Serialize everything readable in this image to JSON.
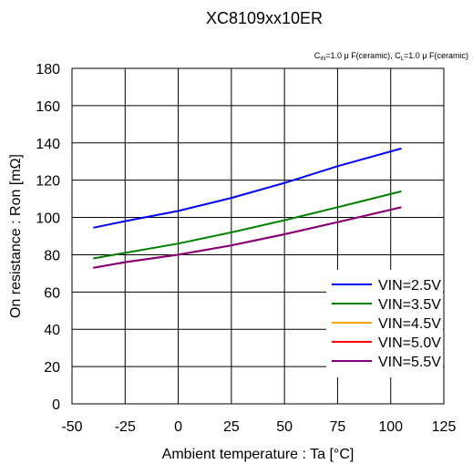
{
  "chart_data": {
    "type": "line",
    "title": "XC8109xx10ER",
    "subtitle": "CIN=1.0μF(ceramic), CL=1.0μF(ceramic)",
    "subtitle_parts": {
      "cin_symbol": "C",
      "cin_sub": "IN",
      "cin_rest": "=1.0 μ F(ceramic),",
      "cl_symbol": "C",
      "cl_sub": "L",
      "cl_rest": "=1.0 μ F(ceramic)"
    },
    "xlabel": "Ambient temperature : Ta [°C]",
    "ylabel": "On resistance : Ron [mΩ]",
    "xlim": [
      -50,
      125
    ],
    "ylim": [
      0,
      180
    ],
    "x_ticks": [
      -50,
      -25,
      0,
      25,
      50,
      75,
      100,
      125
    ],
    "y_ticks": [
      0,
      20,
      40,
      60,
      80,
      100,
      120,
      140,
      160,
      180
    ],
    "grid": true,
    "legend_position": "bottom-right",
    "series": [
      {
        "name": "VIN=2.5V",
        "color": "#0000ff",
        "x": [
          -40,
          -25,
          0,
          25,
          50,
          75,
          105
        ],
        "y": [
          94.5,
          98,
          103.5,
          110.5,
          118.5,
          127.5,
          137
        ]
      },
      {
        "name": "VIN=3.5V",
        "color": "#008000",
        "x": [
          -40,
          -25,
          0,
          25,
          50,
          75,
          105
        ],
        "y": [
          78,
          81,
          86,
          92,
          98.5,
          105.5,
          114
        ]
      },
      {
        "name": "VIN=4.5V",
        "color": "#ffa500",
        "x": [
          -40,
          -25,
          0,
          25,
          50,
          75,
          105
        ],
        "y": [
          73,
          76,
          80,
          85,
          91,
          97.5,
          105.5
        ]
      },
      {
        "name": "VIN=5.0V",
        "color": "#ff0000",
        "x": [
          -40,
          -25,
          0,
          25,
          50,
          75,
          105
        ],
        "y": [
          73,
          76,
          80,
          85,
          91,
          97.5,
          105.5
        ]
      },
      {
        "name": "VIN=5.5V",
        "color": "#800080",
        "x": [
          -40,
          -25,
          0,
          25,
          50,
          75,
          105
        ],
        "y": [
          73,
          76,
          80,
          85,
          91,
          97.5,
          105.5
        ]
      }
    ]
  }
}
